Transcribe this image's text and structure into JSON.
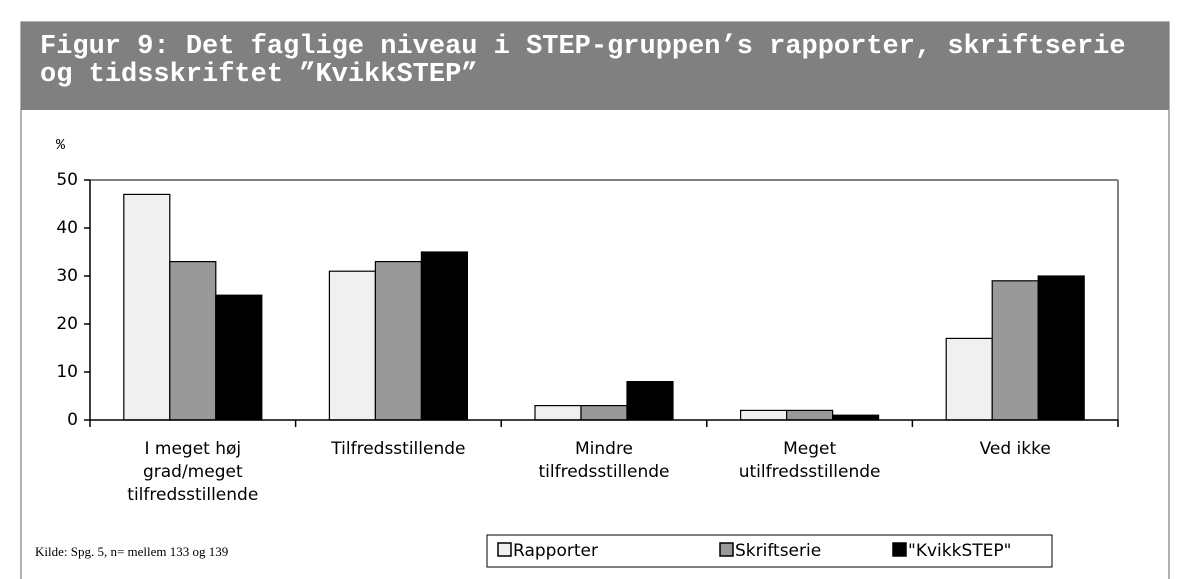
{
  "chart_data": {
    "type": "bar",
    "title": "Figur 9: Det faglige niveau i STEP-gruppen’s rapporter, skriftserie og tidsskriftet ”KvikkSTEP”",
    "y_label": "%",
    "categories": [
      "I meget høj grad/meget tilfredsstillende",
      "Tilfredsstillende",
      "Mindre tilfredsstillende",
      "Meget utilfredsstillende",
      "Ved ikke"
    ],
    "series": [
      {
        "name": "Rapporter",
        "color": "#f0f0f0",
        "values": [
          47,
          31,
          3,
          2,
          17
        ]
      },
      {
        "name": "Skriftserie",
        "color": "#999999",
        "values": [
          33,
          33,
          3,
          2,
          29
        ]
      },
      {
        "name": "\"KvikkSTEP\"",
        "color": "#000000",
        "values": [
          26,
          35,
          8,
          1,
          30
        ]
      }
    ],
    "ylim": [
      0,
      50
    ],
    "yticks": [
      0,
      10,
      20,
      30,
      40,
      50
    ],
    "source": "Kilde: Spg. 5, n= mellem 133 og 139",
    "legend": "bottom"
  }
}
